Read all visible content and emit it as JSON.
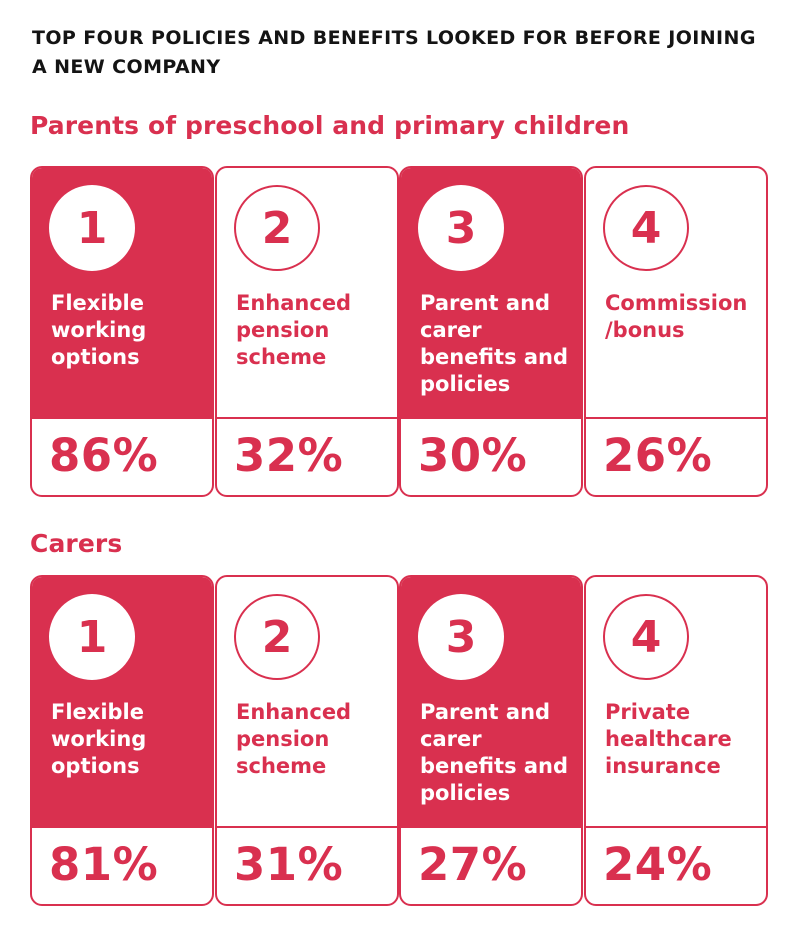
{
  "title": "TOP FOUR POLICIES AND BENEFITS LOOKED FOR BEFORE JOINING A NEW COMPANY",
  "colors": {
    "accent": "#d9304f",
    "text": "#141414",
    "background": "#ffffff"
  },
  "chart_data": [
    {
      "type": "table",
      "title": "Parents of preschool and primary children",
      "items": [
        {
          "rank": "1",
          "label": "Flexible working options",
          "value": "86%",
          "style": "filled"
        },
        {
          "rank": "2",
          "label": "Enhanced pension scheme",
          "value": "32%",
          "style": "outline"
        },
        {
          "rank": "3",
          "label": "Parent and carer benefits and policies",
          "value": "30%",
          "style": "filled"
        },
        {
          "rank": "4",
          "label": "Commission /bonus",
          "value": "26%",
          "style": "outline"
        }
      ]
    },
    {
      "type": "table",
      "title": "Carers",
      "items": [
        {
          "rank": "1",
          "label": "Flexible working options",
          "value": "81%",
          "style": "filled"
        },
        {
          "rank": "2",
          "label": "Enhanced pension scheme",
          "value": "31%",
          "style": "outline"
        },
        {
          "rank": "3",
          "label": "Parent and carer benefits and policies",
          "value": "27%",
          "style": "filled"
        },
        {
          "rank": "4",
          "label": "Private healthcare insurance",
          "value": "24%",
          "style": "outline"
        }
      ]
    }
  ]
}
